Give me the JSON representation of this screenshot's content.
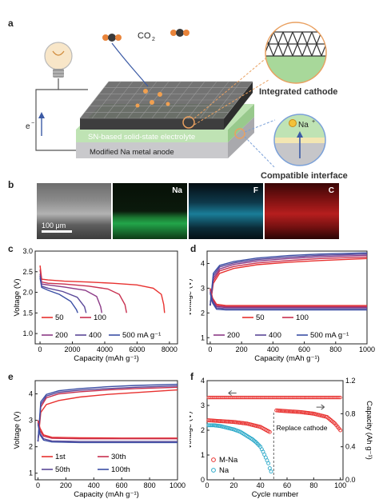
{
  "panels": {
    "a": {
      "letter": "a",
      "co2_label": "CO",
      "co2_sub": "2",
      "electron_label": "e",
      "electron_sup": "−",
      "electrolyte_label": "SN-based solid-state electrolyte",
      "anode_label": "Modified Na metal anode",
      "cathode_title": "Integrated cathode",
      "interface_title": "Compatible interface",
      "ion_label": "Na",
      "ion_sup": "+",
      "colors": {
        "cathode_mesh": "#3a3a3a",
        "electrolyte": "#bfe3b4",
        "anode": "#c9c9cc",
        "highlight": "#f0a050"
      }
    },
    "b": {
      "letter": "b",
      "maps": [
        {
          "tag": "",
          "color": "#8a8a8a"
        },
        {
          "tag": "Na",
          "color": "#1aa84a"
        },
        {
          "tag": "F",
          "color": "#29b7d8"
        },
        {
          "tag": "C",
          "color": "#e02525"
        }
      ],
      "scale_bar": "100 μm"
    },
    "c": {
      "letter": "c"
    },
    "d": {
      "letter": "d"
    },
    "e": {
      "letter": "e"
    },
    "f": {
      "letter": "f"
    }
  },
  "chart_data": [
    {
      "panel": "c",
      "type": "line",
      "xlabel": "Capacity (mAh g⁻¹)",
      "ylabel": "Voltage (V)",
      "xlim": [
        -300,
        8500
      ],
      "ylim": [
        0.75,
        3.0
      ],
      "xticks": [
        0,
        2000,
        4000,
        6000,
        8000
      ],
      "yticks": [
        1.0,
        1.5,
        2.0,
        2.5,
        3.0
      ],
      "legend_position": "bottom-left",
      "legend": [
        "50",
        "100",
        "200",
        "400",
        "500 mA g⁻¹"
      ],
      "series": [
        {
          "name": "50",
          "color": "#e8312f",
          "x": [
            0,
            100,
            500,
            1500,
            3000,
            4500,
            6000,
            7000,
            7500,
            7650,
            7700
          ],
          "y": [
            2.65,
            2.32,
            2.3,
            2.27,
            2.25,
            2.22,
            2.18,
            2.1,
            1.95,
            1.7,
            1.5
          ]
        },
        {
          "name": "100",
          "color": "#c8304f",
          "x": [
            0,
            100,
            500,
            1500,
            3000,
            4200,
            4900,
            5250,
            5350
          ],
          "y": [
            2.55,
            2.25,
            2.22,
            2.2,
            2.15,
            2.08,
            1.95,
            1.7,
            1.5
          ]
        },
        {
          "name": "200",
          "color": "#8c3a86",
          "x": [
            0,
            100,
            500,
            1500,
            2800,
            3500,
            3750,
            3820
          ],
          "y": [
            2.45,
            2.2,
            2.18,
            2.13,
            2.05,
            1.9,
            1.65,
            1.5
          ]
        },
        {
          "name": "400",
          "color": "#5a4798",
          "x": [
            0,
            100,
            500,
            1400,
            2300,
            2750,
            2850
          ],
          "y": [
            2.4,
            2.15,
            2.1,
            2.02,
            1.88,
            1.65,
            1.5
          ]
        },
        {
          "name": "500 mA g⁻¹",
          "color": "#3b4fa5",
          "x": [
            0,
            100,
            500,
            1200,
            1900,
            2250,
            2330
          ],
          "y": [
            2.35,
            2.12,
            2.05,
            1.95,
            1.78,
            1.58,
            1.5
          ]
        }
      ]
    },
    {
      "panel": "d",
      "type": "line",
      "xlabel": "Capacity (mAh g⁻¹)",
      "ylabel": "Voltage (V)",
      "xlim": [
        -20,
        1000
      ],
      "ylim": [
        0.75,
        4.5
      ],
      "xticks": [
        0,
        200,
        400,
        600,
        800,
        1000
      ],
      "yticks": [
        1,
        2,
        3,
        4
      ],
      "legend_position": "bottom",
      "legend": [
        "50",
        "100",
        "200",
        "400",
        "500 mA g⁻¹"
      ],
      "series": [
        {
          "name": "50 charge",
          "color": "#e8312f",
          "x": [
            0,
            20,
            60,
            150,
            300,
            500,
            700,
            1000
          ],
          "y": [
            2.3,
            3.2,
            3.6,
            3.8,
            3.95,
            4.05,
            4.12,
            4.2
          ]
        },
        {
          "name": "100 charge",
          "color": "#c8304f",
          "x": [
            0,
            20,
            60,
            150,
            300,
            500,
            700,
            1000
          ],
          "y": [
            2.3,
            3.3,
            3.7,
            3.88,
            4.02,
            4.12,
            4.2,
            4.26
          ]
        },
        {
          "name": "200 charge",
          "color": "#8c3a86",
          "x": [
            0,
            20,
            60,
            150,
            300,
            500,
            700,
            1000
          ],
          "y": [
            2.3,
            3.4,
            3.78,
            3.96,
            4.1,
            4.2,
            4.27,
            4.33
          ]
        },
        {
          "name": "400 charge",
          "color": "#5a4798",
          "x": [
            0,
            20,
            60,
            150,
            300,
            500,
            700,
            1000
          ],
          "y": [
            2.3,
            3.5,
            3.86,
            4.02,
            4.16,
            4.26,
            4.33,
            4.38
          ]
        },
        {
          "name": "500 charge",
          "color": "#3b4fa5",
          "x": [
            0,
            20,
            60,
            150,
            300,
            500,
            700,
            1000
          ],
          "y": [
            2.3,
            3.6,
            3.92,
            4.08,
            4.22,
            4.32,
            4.38,
            4.43
          ]
        },
        {
          "name": "50 discharge",
          "color": "#e8312f",
          "x": [
            0,
            15,
            40,
            100,
            300,
            600,
            1000
          ],
          "y": [
            3.0,
            2.6,
            2.35,
            2.3,
            2.3,
            2.3,
            2.3
          ]
        },
        {
          "name": "100 discharge",
          "color": "#c8304f",
          "x": [
            0,
            15,
            40,
            100,
            300,
            600,
            1000
          ],
          "y": [
            2.95,
            2.55,
            2.3,
            2.26,
            2.26,
            2.26,
            2.26
          ]
        },
        {
          "name": "200 discharge",
          "color": "#8c3a86",
          "x": [
            0,
            15,
            40,
            100,
            300,
            600,
            1000
          ],
          "y": [
            2.9,
            2.5,
            2.26,
            2.22,
            2.22,
            2.22,
            2.22
          ]
        },
        {
          "name": "400 discharge",
          "color": "#5a4798",
          "x": [
            0,
            15,
            40,
            100,
            300,
            600,
            1000
          ],
          "y": [
            2.85,
            2.45,
            2.2,
            2.17,
            2.17,
            2.17,
            2.17
          ]
        },
        {
          "name": "500 discharge",
          "color": "#3b4fa5",
          "x": [
            0,
            15,
            40,
            100,
            300,
            600,
            1000
          ],
          "y": [
            2.8,
            2.4,
            2.15,
            2.12,
            2.12,
            2.12,
            2.12
          ]
        }
      ]
    },
    {
      "panel": "e",
      "type": "line",
      "xlabel": "Capacity (mAh g⁻¹)",
      "ylabel": "Voltage (V)",
      "xlim": [
        -20,
        1000
      ],
      "ylim": [
        0.75,
        4.5
      ],
      "xticks": [
        0,
        200,
        400,
        600,
        800,
        1000
      ],
      "yticks": [
        1,
        2,
        3,
        4
      ],
      "legend_position": "bottom-left",
      "legend": [
        "1st",
        "30th",
        "50th",
        "100th"
      ],
      "series": [
        {
          "name": "1st charge",
          "color": "#e8312f",
          "x": [
            0,
            20,
            60,
            150,
            300,
            500,
            700,
            1000
          ],
          "y": [
            2.2,
            3.3,
            3.6,
            3.75,
            3.88,
            3.98,
            4.05,
            4.15
          ]
        },
        {
          "name": "30th charge",
          "color": "#c8304f",
          "x": [
            0,
            20,
            60,
            150,
            300,
            500,
            700,
            1000
          ],
          "y": [
            2.2,
            3.5,
            3.85,
            4.0,
            4.08,
            4.15,
            4.2,
            4.25
          ]
        },
        {
          "name": "50th charge",
          "color": "#5a4798",
          "x": [
            0,
            20,
            60,
            150,
            300,
            500,
            700,
            1000
          ],
          "y": [
            2.2,
            3.6,
            3.92,
            4.06,
            4.14,
            4.2,
            4.25,
            4.3
          ]
        },
        {
          "name": "100th charge",
          "color": "#3b4fa5",
          "x": [
            0,
            20,
            60,
            150,
            300,
            500,
            700,
            1000
          ],
          "y": [
            2.2,
            3.7,
            3.98,
            4.12,
            4.2,
            4.27,
            4.32,
            4.36
          ]
        },
        {
          "name": "1st discharge",
          "color": "#e8312f",
          "x": [
            0,
            15,
            40,
            100,
            300,
            600,
            1000
          ],
          "y": [
            3.0,
            2.7,
            2.45,
            2.36,
            2.34,
            2.33,
            2.33
          ]
        },
        {
          "name": "30th discharge",
          "color": "#c8304f",
          "x": [
            0,
            15,
            40,
            100,
            300,
            600,
            1000
          ],
          "y": [
            2.95,
            2.6,
            2.4,
            2.32,
            2.3,
            2.3,
            2.3
          ]
        },
        {
          "name": "50th discharge",
          "color": "#5a4798",
          "x": [
            0,
            15,
            40,
            100,
            300,
            600,
            1000
          ],
          "y": [
            2.9,
            2.5,
            2.3,
            2.22,
            2.2,
            2.2,
            2.2
          ]
        },
        {
          "name": "100th discharge",
          "color": "#3b4fa5",
          "x": [
            0,
            15,
            40,
            100,
            300,
            600,
            1000
          ],
          "y": [
            2.85,
            2.45,
            2.25,
            2.18,
            2.16,
            2.16,
            2.16
          ]
        }
      ]
    },
    {
      "panel": "f",
      "type": "scatter",
      "xlabel": "Cycle number",
      "ylabel": "Voltage (V)",
      "y2label": "Capacity (Ah g⁻¹)",
      "xlim": [
        0,
        102
      ],
      "ylim": [
        0,
        4
      ],
      "y2lim": [
        0,
        1.2
      ],
      "xticks": [
        0,
        20,
        40,
        60,
        80,
        100
      ],
      "yticks": [
        0,
        1,
        2,
        3,
        4
      ],
      "y2ticks": [
        0.0,
        0.4,
        0.8,
        1.2
      ],
      "legend_position": "bottom-left",
      "legend": [
        "M-Na",
        "Na"
      ],
      "annotations": [
        "Replace cathode"
      ],
      "series": [
        {
          "name": "M-Na",
          "axis": "left",
          "color": "#e8312f",
          "marker": "open-circle",
          "x_range": [
            1,
            100
          ],
          "y": 3.32
        },
        {
          "name": "M-Na",
          "axis": "right",
          "color": "#e8312f",
          "marker": "open-circle",
          "x": [
            1,
            10,
            20,
            30,
            40,
            48,
            52,
            60,
            70,
            80,
            90,
            96,
            100
          ],
          "y": [
            0.72,
            0.71,
            0.7,
            0.68,
            0.64,
            0.57,
            0.84,
            0.83,
            0.82,
            0.8,
            0.76,
            0.68,
            0.6
          ]
        },
        {
          "name": "Na",
          "axis": "right",
          "color": "#29a8c8",
          "marker": "open-circle",
          "x": [
            1,
            5,
            10,
            15,
            20,
            25,
            28,
            31,
            34,
            37,
            40,
            42,
            44,
            46,
            47,
            48
          ],
          "y": [
            0.66,
            0.66,
            0.65,
            0.63,
            0.61,
            0.58,
            0.55,
            0.52,
            0.49,
            0.45,
            0.4,
            0.34,
            0.27,
            0.2,
            0.14,
            0.1
          ]
        }
      ]
    }
  ]
}
